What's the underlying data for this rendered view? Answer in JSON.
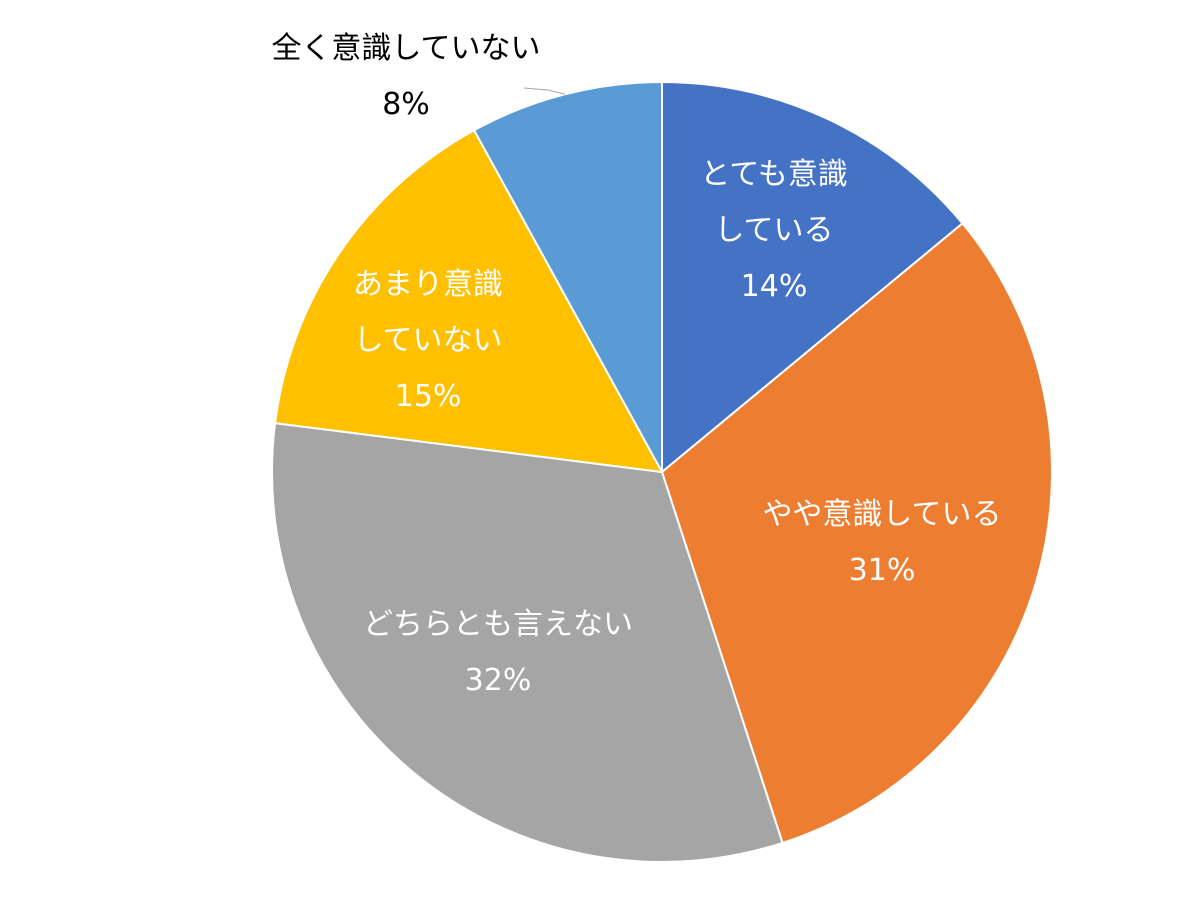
{
  "chart_data": {
    "type": "pie",
    "title": "",
    "start_angle_deg": 0,
    "direction": "clockwise",
    "slices": [
      {
        "label_lines": [
          "とても意識",
          "している"
        ],
        "value": 14,
        "value_text": "14%",
        "color": "#4472C4",
        "label_color": "#ffffff"
      },
      {
        "label_lines": [
          "やや意識している"
        ],
        "value": 31,
        "value_text": "31%",
        "color": "#ED7D31",
        "label_color": "#ffffff"
      },
      {
        "label_lines": [
          "どちらとも言えない"
        ],
        "value": 32,
        "value_text": "32%",
        "color": "#A5A5A5",
        "label_color": "#ffffff"
      },
      {
        "label_lines": [
          "あまり意識",
          "していない"
        ],
        "value": 15,
        "value_text": "15%",
        "color": "#FFC000",
        "label_color": "#ffffff"
      },
      {
        "label_lines": [
          "全く意識していない"
        ],
        "value": 8,
        "value_text": "8%",
        "color": "#5B9BD5",
        "label_color": "#000000",
        "label_outside": true
      }
    ]
  }
}
